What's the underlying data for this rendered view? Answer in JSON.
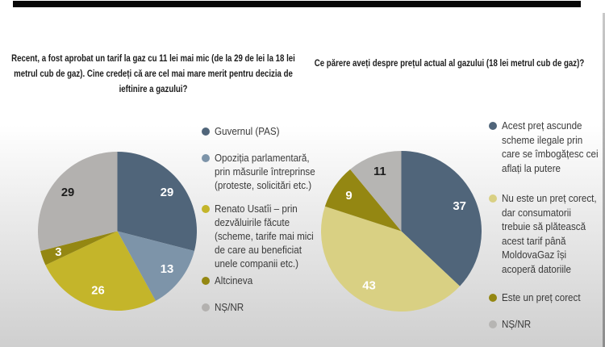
{
  "page": {
    "top_bar_color": "#070707",
    "background_top": "#ffffff",
    "background_bottom": "#cfcfcf"
  },
  "chart_data": [
    {
      "type": "pie",
      "title": "Recent, a fost aprobat un tarif la gaz cu 11 lei mai mic (de la 29 de lei la 18 lei metrul cub de gaz). Cine credeți că are cel mai mare merit pentru decizia de ieftinire a gazului?",
      "categories": [
        "Guvernul (PAS)",
        "Opoziția parlamentară, prin măsurile întreprinse (proteste, solicitări etc.)",
        "Renato Usatîi – prin dezvăluirile făcute (scheme, tarife mai mici de care au beneficiat unele companii etc.)",
        "Altcineva",
        "NȘ/NR"
      ],
      "values": [
        29,
        13,
        26,
        3,
        29
      ],
      "colors": [
        "#50657a",
        "#7d94a9",
        "#c4b52a",
        "#948712",
        "#b3b1af"
      ],
      "value_label_colors": [
        "#ffffff",
        "#ffffff",
        "#ffffff",
        "#ffffff",
        "#1c1c1c"
      ],
      "start_angle": 0,
      "direction": "clockwise",
      "units": "percent",
      "legend_position": "right",
      "grid": false
    },
    {
      "type": "pie",
      "title": "Ce părere aveți despre prețul actual al gazului (18 lei metrul cub de gaz)?",
      "categories": [
        "Acest preț ascunde scheme ilegale prin care se îmbogățesc cei aflați la putere",
        "Nu este un preț corect, dar consumatorii trebuie să plătească acest tarif până MoldovaGaz își acoperă datoriile",
        "Este un preț corect",
        "NȘ/NR"
      ],
      "values": [
        37,
        43,
        9,
        11
      ],
      "colors": [
        "#50657a",
        "#d9d083",
        "#948712",
        "#b6b5b3"
      ],
      "value_label_colors": [
        "#ffffff",
        "#ffffff",
        "#ffffff",
        "#1c1c1c"
      ],
      "start_angle": 0,
      "direction": "clockwise",
      "units": "percent",
      "legend_position": "right",
      "grid": false
    }
  ]
}
